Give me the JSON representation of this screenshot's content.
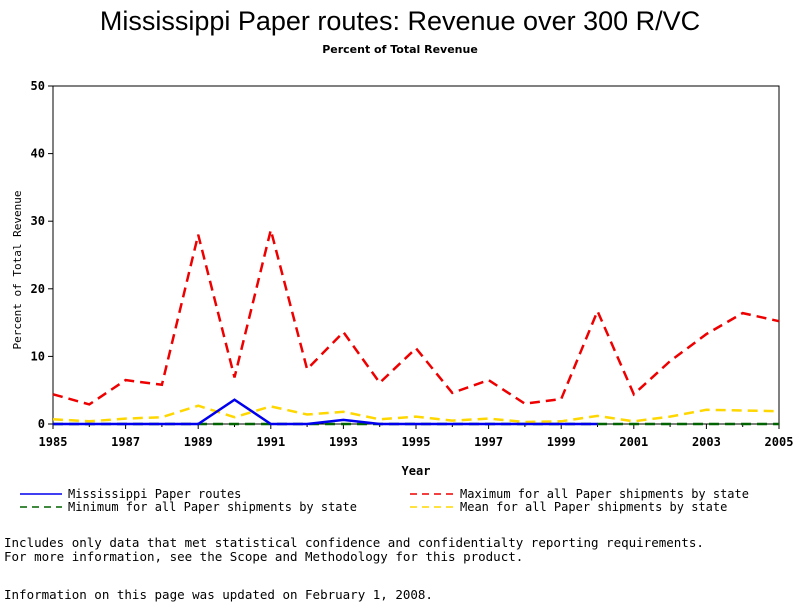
{
  "chart_data": {
    "type": "line",
    "title": "Mississippi Paper routes: Revenue over 300 R/VC",
    "subtitle": "Percent of Total Revenue",
    "xlabel": "Year",
    "ylabel": "Percent of Total Revenue",
    "xlim": [
      1985,
      2005
    ],
    "ylim": [
      0,
      50
    ],
    "xticks": [
      1985,
      1987,
      1989,
      1991,
      1993,
      1995,
      1997,
      1999,
      2001,
      2003,
      2005
    ],
    "yticks": [
      0,
      10,
      20,
      30,
      40,
      50
    ],
    "grid": false,
    "legend_position": "bottom",
    "series": [
      {
        "name": "Mississippi Paper routes",
        "color": "#0000ee",
        "dash": "solid",
        "x": [
          1985,
          1986,
          1987,
          1988,
          1989,
          1990,
          1991,
          1992,
          1993,
          1994,
          1995,
          1996,
          1997,
          1998,
          1999,
          2000
        ],
        "y": [
          0,
          0,
          0,
          0,
          0,
          3.6,
          0,
          0,
          0.6,
          0,
          0,
          0,
          0,
          0,
          0,
          0
        ]
      },
      {
        "name": "Maximum for all Paper shipments by state",
        "color": "#ee0000",
        "dash": "dashed",
        "x": [
          1985,
          1986,
          1987,
          1988,
          1989,
          1990,
          1991,
          1992,
          1993,
          1994,
          1995,
          1996,
          1997,
          1998,
          1999,
          2000,
          2001,
          2002,
          2003,
          2004,
          2005
        ],
        "y": [
          4.4,
          2.9,
          6.5,
          5.8,
          28.0,
          6.9,
          28.7,
          8.1,
          13.6,
          6.1,
          11.2,
          4.6,
          6.5,
          3.0,
          3.7,
          16.7,
          4.4,
          9.3,
          13.3,
          16.4,
          15.2
        ]
      },
      {
        "name": "Minimum for all Paper shipments by state",
        "color": "#006400",
        "dash": "dashed",
        "x": [
          1985,
          1986,
          1987,
          1988,
          1989,
          1990,
          1991,
          1992,
          1993,
          1994,
          1995,
          1996,
          1997,
          1998,
          1999,
          2000,
          2001,
          2002,
          2003,
          2004,
          2005
        ],
        "y": [
          0,
          0,
          0,
          0,
          0,
          0,
          0,
          0,
          0,
          0,
          0,
          0,
          0,
          0,
          0,
          0,
          0,
          0,
          0,
          0,
          0
        ]
      },
      {
        "name": "Mean for all Paper shipments by state",
        "color": "#ffd700",
        "dash": "dashed",
        "x": [
          1985,
          1986,
          1987,
          1988,
          1989,
          1990,
          1991,
          1992,
          1993,
          1994,
          1995,
          1996,
          1997,
          1998,
          1999,
          2000,
          2001,
          2002,
          2003,
          2004,
          2005
        ],
        "y": [
          0.7,
          0.4,
          0.8,
          1.0,
          2.7,
          1.0,
          2.6,
          1.4,
          1.8,
          0.7,
          1.1,
          0.5,
          0.8,
          0.3,
          0.4,
          1.2,
          0.4,
          1.1,
          2.1,
          2.0,
          1.9
        ]
      }
    ]
  },
  "footer": {
    "note_line1": "Includes only data that met statistical confidence and confidentialty reporting requirements.",
    "note_line2": "For more information, see the Scope and Methodology for this product.",
    "updated": "Information on this page was updated on February 1, 2008."
  }
}
